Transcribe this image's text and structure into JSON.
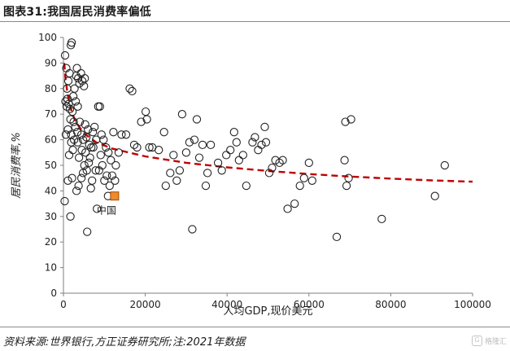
{
  "title": "图表31:我国居民消费率偏低",
  "source": "资料来源:世界银行,方正证券研究所;注:2021年数据",
  "watermark": {
    "text": "格隆汇",
    "logo": "G"
  },
  "colors": {
    "points": "#222222",
    "trend": "#c00000",
    "china_fill": "#f08a2c",
    "china_stroke": "#a04a00"
  },
  "chart_data": {
    "type": "scatter",
    "xlabel": "人均GDP,现价美元",
    "ylabel": "居民消费率,%",
    "xlim": [
      0,
      100000
    ],
    "ylim": [
      0,
      100
    ],
    "xticks": [
      0,
      20000,
      40000,
      60000,
      80000,
      100000
    ],
    "xtick_labels": [
      "0",
      "20000",
      "40000",
      "60000",
      "80000",
      "100000"
    ],
    "yticks": [
      0,
      10,
      20,
      30,
      40,
      50,
      60,
      70,
      80,
      90,
      100
    ],
    "ytick_labels": [
      "0",
      "10",
      "20",
      "30",
      "40",
      "50",
      "60",
      "70",
      "80",
      "90",
      "100"
    ],
    "grid": false,
    "series": [
      {
        "marker": "open-circle",
        "points": [
          [
            400,
            93
          ],
          [
            700,
            88
          ],
          [
            900,
            80
          ],
          [
            1200,
            83
          ],
          [
            1500,
            86
          ],
          [
            1800,
            97
          ],
          [
            2000,
            98
          ],
          [
            1000,
            76
          ],
          [
            1300,
            74
          ],
          [
            1600,
            72
          ],
          [
            2200,
            71
          ],
          [
            800,
            73
          ],
          [
            500,
            75
          ],
          [
            2700,
            80
          ],
          [
            3100,
            85
          ],
          [
            3300,
            88
          ],
          [
            3600,
            84
          ],
          [
            3900,
            82
          ],
          [
            4300,
            86
          ],
          [
            4600,
            83
          ],
          [
            5200,
            84
          ],
          [
            5000,
            81
          ],
          [
            2400,
            77
          ],
          [
            3000,
            75
          ],
          [
            3500,
            73
          ],
          [
            2500,
            67
          ],
          [
            2900,
            65
          ],
          [
            3400,
            63
          ],
          [
            1700,
            68
          ],
          [
            1900,
            62
          ],
          [
            1100,
            64
          ],
          [
            4000,
            67
          ],
          [
            4400,
            62
          ],
          [
            4800,
            60
          ],
          [
            5300,
            66
          ],
          [
            5600,
            61
          ],
          [
            6000,
            64
          ],
          [
            6300,
            58
          ],
          [
            6800,
            57
          ],
          [
            7200,
            63
          ],
          [
            7600,
            65
          ],
          [
            8000,
            60
          ],
          [
            8500,
            73
          ],
          [
            8900,
            73
          ],
          [
            9300,
            62
          ],
          [
            9800,
            60
          ],
          [
            10400,
            57
          ],
          [
            11000,
            55
          ],
          [
            11600,
            52
          ],
          [
            12200,
            63
          ],
          [
            12800,
            50
          ],
          [
            13500,
            55
          ],
          [
            14200,
            62
          ],
          [
            15300,
            62
          ],
          [
            16200,
            80
          ],
          [
            16800,
            79
          ],
          [
            17300,
            58
          ],
          [
            18000,
            57
          ],
          [
            19000,
            67
          ],
          [
            20100,
            71
          ],
          [
            20400,
            68
          ],
          [
            21000,
            57
          ],
          [
            21700,
            57
          ],
          [
            23300,
            56
          ],
          [
            24600,
            63
          ],
          [
            25000,
            42
          ],
          [
            26100,
            47
          ],
          [
            26900,
            54
          ],
          [
            27700,
            44
          ],
          [
            28400,
            48
          ],
          [
            29000,
            70
          ],
          [
            30000,
            55
          ],
          [
            30800,
            59
          ],
          [
            31500,
            25
          ],
          [
            32000,
            60
          ],
          [
            32600,
            68
          ],
          [
            33200,
            53
          ],
          [
            34000,
            58
          ],
          [
            34800,
            42
          ],
          [
            35200,
            47
          ],
          [
            36000,
            58
          ],
          [
            37800,
            51
          ],
          [
            38700,
            48
          ],
          [
            39800,
            54
          ],
          [
            40800,
            56
          ],
          [
            41700,
            63
          ],
          [
            42300,
            59
          ],
          [
            42900,
            52
          ],
          [
            43900,
            54
          ],
          [
            44700,
            42
          ],
          [
            46200,
            59
          ],
          [
            46800,
            61
          ],
          [
            47600,
            56
          ],
          [
            48400,
            58
          ],
          [
            49200,
            65
          ],
          [
            49500,
            59
          ],
          [
            50300,
            47
          ],
          [
            51000,
            49
          ],
          [
            51800,
            52
          ],
          [
            52800,
            51
          ],
          [
            53600,
            52
          ],
          [
            54800,
            33
          ],
          [
            56500,
            35
          ],
          [
            57800,
            42
          ],
          [
            58800,
            45
          ],
          [
            60000,
            51
          ],
          [
            60800,
            44
          ],
          [
            66800,
            22
          ],
          [
            68700,
            52
          ],
          [
            68900,
            67
          ],
          [
            69200,
            42
          ],
          [
            69700,
            45
          ],
          [
            70300,
            68
          ],
          [
            77800,
            29
          ],
          [
            90800,
            38
          ],
          [
            93200,
            50
          ],
          [
            300,
            36
          ],
          [
            1100,
            44
          ],
          [
            1700,
            30
          ],
          [
            2100,
            45
          ],
          [
            3200,
            40
          ],
          [
            3700,
            42
          ],
          [
            4400,
            45
          ],
          [
            4800,
            47
          ],
          [
            5100,
            50
          ],
          [
            5700,
            48
          ],
          [
            6200,
            51
          ],
          [
            6700,
            41
          ],
          [
            7000,
            44
          ],
          [
            7900,
            48
          ],
          [
            8700,
            48
          ],
          [
            9500,
            50
          ],
          [
            10000,
            44
          ],
          [
            10600,
            46
          ],
          [
            11300,
            42
          ],
          [
            11900,
            46
          ],
          [
            12600,
            44
          ],
          [
            5800,
            24
          ],
          [
            8200,
            33
          ],
          [
            10900,
            38
          ],
          [
            1400,
            54
          ],
          [
            2300,
            56
          ],
          [
            3800,
            53
          ],
          [
            4500,
            56
          ],
          [
            5400,
            55
          ],
          [
            6500,
            53
          ],
          [
            9100,
            54
          ],
          [
            600,
            62
          ],
          [
            1900,
            59
          ],
          [
            2600,
            60
          ],
          [
            3500,
            59
          ],
          [
            7300,
            57
          ]
        ]
      }
    ],
    "highlight": {
      "label": "中国",
      "x": 12500,
      "y": 38
    },
    "trendline": {
      "style": "dashed",
      "points": [
        [
          200,
          90
        ],
        [
          500,
          84
        ],
        [
          1000,
          78
        ],
        [
          2000,
          71
        ],
        [
          3000,
          67
        ],
        [
          5000,
          62.5
        ],
        [
          8000,
          59
        ],
        [
          12000,
          56.5
        ],
        [
          20000,
          53.5
        ],
        [
          30000,
          51
        ],
        [
          40000,
          49.2
        ],
        [
          50000,
          47.8
        ],
        [
          60000,
          46.6
        ],
        [
          70000,
          45.6
        ],
        [
          80000,
          44.8
        ],
        [
          90000,
          44.1
        ],
        [
          100000,
          43.6
        ]
      ]
    }
  }
}
